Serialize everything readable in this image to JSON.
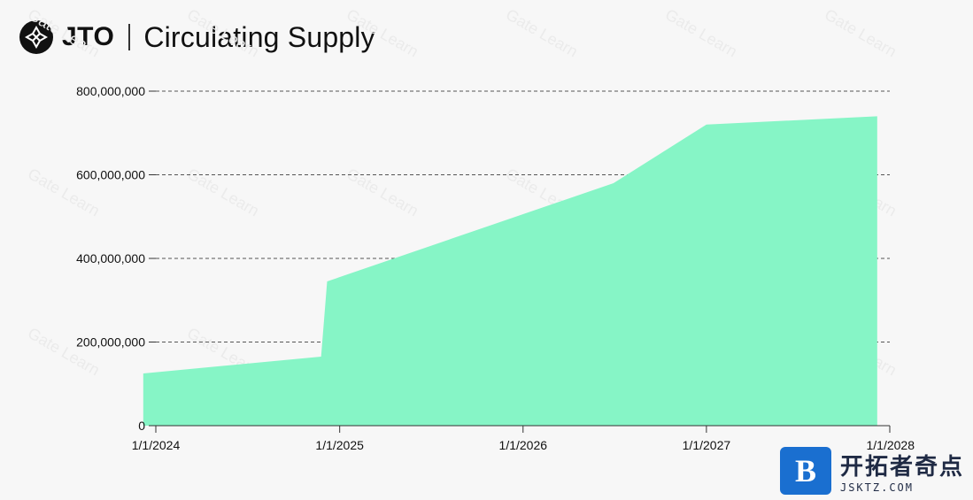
{
  "header": {
    "logo_icon": "jito-logo-icon",
    "ticker": "JTO",
    "title": "Circulating Supply"
  },
  "chart_data": {
    "type": "area",
    "title": "Circulating Supply",
    "color": "#86f5c6",
    "x_dates": [
      "2023-12-07",
      "2024-11-25",
      "2024-12-07",
      "2026-06-30",
      "2027-01-01",
      "2027-12-07"
    ],
    "y": [
      125000000,
      165000000,
      345000000,
      580000000,
      720000000,
      740000000
    ],
    "ylim": [
      0,
      800000000
    ],
    "yticks": [
      0,
      200000000,
      400000000,
      600000000,
      800000000
    ],
    "ytick_labels": [
      "0",
      "200,000,000",
      "400,000,000",
      "600,000,000",
      "800,000,000"
    ],
    "xtick_dates": [
      "2024-01-01",
      "2025-01-01",
      "2026-01-01",
      "2027-01-01",
      "2028-01-01"
    ],
    "xtick_labels": [
      "1/1/2024",
      "1/1/2025",
      "1/1/2026",
      "1/1/2027",
      "1/1/2028"
    ],
    "grid": "dashed horizontal"
  },
  "watermark": {
    "badge": "B",
    "cn": "开拓者奇点",
    "url": "JSKTZ.COM",
    "background_text": "Gate Learn"
  }
}
